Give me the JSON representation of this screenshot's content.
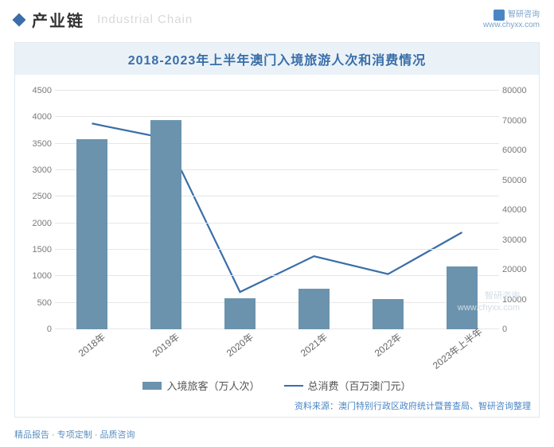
{
  "header": {
    "section_title": "产业链",
    "section_subtitle": "Industrial Chain",
    "brand_name": "智研咨询",
    "brand_url": "www.chyxx.com"
  },
  "chart": {
    "type": "bar+line",
    "title": "2018-2023年上半年澳门入境旅游人次和消费情况",
    "categories": [
      "2018年",
      "2019年",
      "2020年",
      "2021年",
      "2022年",
      "2023年上半年"
    ],
    "bar": {
      "label": "入境旅客（万人次）",
      "values": [
        3580,
        3940,
        590,
        770,
        570,
        1180
      ],
      "color": "#6b93ad",
      "width_ratio": 0.42
    },
    "line": {
      "label": "总消费（百万澳门元）",
      "values": [
        69000,
        64000,
        12500,
        24500,
        18500,
        32500
      ],
      "color": "#3a6ea8",
      "stroke_width": 2.2
    },
    "y_left": {
      "min": 0,
      "max": 4500,
      "step": 500
    },
    "y_right": {
      "min": 0,
      "max": 80000,
      "step": 10000
    },
    "grid_color": "#e6e6e6",
    "background": "#ffffff",
    "title_bg": "#eaf2f8",
    "title_color": "#3a6ea8",
    "axis_text_color": "#7a7a7a",
    "font_family": "Microsoft YaHei",
    "title_fontsize": 16,
    "axis_fontsize": 11,
    "legend_fontsize": 13
  },
  "source": "资料来源：澳门特别行政区政府统计暨普查局、智研咨询整理",
  "footer": "精品报告 · 专项定制 · 品质咨询",
  "watermark": {
    "line1": "智研咨询",
    "line2": "www.chyxx.com"
  }
}
